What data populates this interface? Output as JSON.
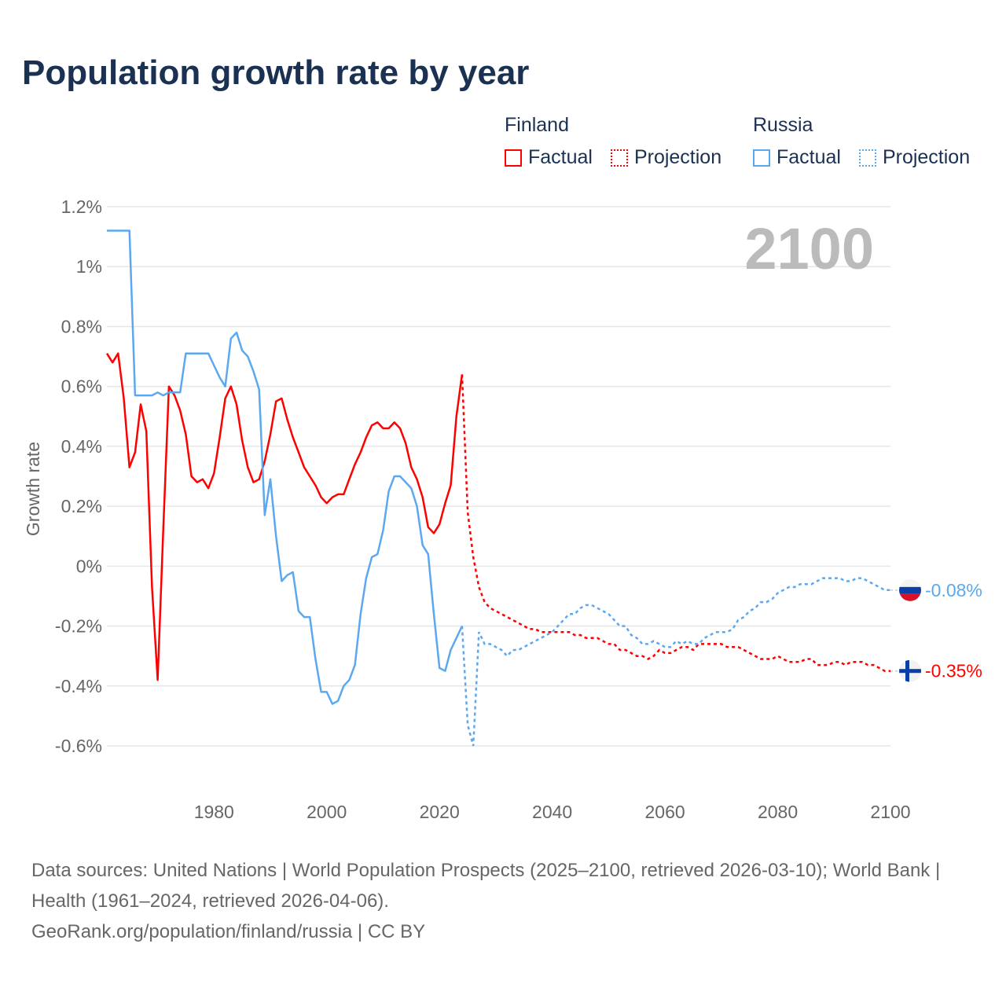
{
  "title": "Population growth rate by year",
  "legend": {
    "groups": [
      {
        "name": "Finland",
        "color": "#ff0000",
        "items": [
          "Factual",
          "Projection"
        ]
      },
      {
        "name": "Russia",
        "color": "#5ba8f0",
        "items": [
          "Factual",
          "Projection"
        ]
      }
    ]
  },
  "footer": {
    "sources": "Data sources: United Nations | World Population Prospects (2025–2100, retrieved 2026-03-10); World Bank | Health (1961–2024, retrieved 2026-04-06).",
    "credit": "GeoRank.org/population/finland/russia | CC BY"
  },
  "chart_data": {
    "type": "line",
    "title": "Population growth rate by year",
    "ylabel": "Growth rate",
    "xlabel": "",
    "year_label": "2100",
    "xlim": [
      1961,
      2100
    ],
    "ylim": [
      -0.6,
      1.2
    ],
    "x_ticks": [
      "1980",
      "2000",
      "2020",
      "2040",
      "2060",
      "2080",
      "2100"
    ],
    "y_ticks": [
      {
        "v": 1.2,
        "label": "1.2%"
      },
      {
        "v": 1.0,
        "label": "1%"
      },
      {
        "v": 0.8,
        "label": "0.8%"
      },
      {
        "v": 0.6,
        "label": "0.6%"
      },
      {
        "v": 0.4,
        "label": "0.4%"
      },
      {
        "v": 0.2,
        "label": "0.2%"
      },
      {
        "v": 0,
        "label": "0%"
      },
      {
        "v": -0.2,
        "label": "-0.2%"
      },
      {
        "v": -0.4,
        "label": "-0.4%"
      },
      {
        "v": -0.6,
        "label": "-0.6%"
      }
    ],
    "grid": true,
    "series": [
      {
        "name": "Finland",
        "color": "#ff0000",
        "end_label": "-0.35%",
        "factual_start": 1961,
        "factual": [
          0.71,
          0.68,
          0.71,
          0.56,
          0.33,
          0.38,
          0.54,
          0.45,
          -0.07,
          -0.38,
          0.12,
          0.6,
          0.57,
          0.52,
          0.44,
          0.3,
          0.28,
          0.29,
          0.26,
          0.31,
          0.43,
          0.56,
          0.6,
          0.54,
          0.42,
          0.33,
          0.28,
          0.29,
          0.35,
          0.44,
          0.55,
          0.56,
          0.49,
          0.43,
          0.38,
          0.33,
          0.3,
          0.27,
          0.23,
          0.21,
          0.23,
          0.24,
          0.24,
          0.29,
          0.34,
          0.38,
          0.43,
          0.47,
          0.48,
          0.46,
          0.46,
          0.48,
          0.46,
          0.41,
          0.33,
          0.29,
          0.23,
          0.13,
          0.11,
          0.14,
          0.21,
          0.27,
          0.5,
          0.64
        ],
        "projection_start": 2024,
        "projection": [
          0.64,
          0.18,
          0.03,
          -0.07,
          -0.12,
          -0.14,
          -0.15,
          -0.16,
          -0.17,
          -0.18,
          -0.19,
          -0.2,
          -0.21,
          -0.21,
          -0.22,
          -0.22,
          -0.22,
          -0.22,
          -0.22,
          -0.22,
          -0.23,
          -0.23,
          -0.24,
          -0.24,
          -0.24,
          -0.25,
          -0.26,
          -0.26,
          -0.28,
          -0.28,
          -0.29,
          -0.3,
          -0.3,
          -0.31,
          -0.3,
          -0.28,
          -0.29,
          -0.29,
          -0.28,
          -0.27,
          -0.27,
          -0.28,
          -0.26,
          -0.26,
          -0.26,
          -0.26,
          -0.26,
          -0.27,
          -0.27,
          -0.27,
          -0.28,
          -0.29,
          -0.3,
          -0.31,
          -0.31,
          -0.31,
          -0.3,
          -0.31,
          -0.32,
          -0.32,
          -0.32,
          -0.31,
          -0.31,
          -0.33,
          -0.33,
          -0.33,
          -0.32,
          -0.32,
          -0.33,
          -0.32,
          -0.32,
          -0.32,
          -0.33,
          -0.33,
          -0.34,
          -0.35,
          -0.35
        ]
      },
      {
        "name": "Russia",
        "color": "#5ba8f0",
        "end_label": "-0.08%",
        "factual_start": 1961,
        "factual": [
          1.12,
          1.12,
          1.12,
          1.12,
          1.12,
          0.57,
          0.57,
          0.57,
          0.57,
          0.58,
          0.57,
          0.58,
          0.58,
          0.58,
          0.71,
          0.71,
          0.71,
          0.71,
          0.71,
          0.67,
          0.63,
          0.6,
          0.76,
          0.78,
          0.72,
          0.7,
          0.65,
          0.59,
          0.17,
          0.29,
          0.1,
          -0.05,
          -0.03,
          -0.02,
          -0.15,
          -0.17,
          -0.17,
          -0.31,
          -0.42,
          -0.42,
          -0.46,
          -0.45,
          -0.4,
          -0.38,
          -0.33,
          -0.16,
          -0.04,
          0.03,
          0.04,
          0.12,
          0.25,
          0.3,
          0.3,
          0.28,
          0.26,
          0.2,
          0.07,
          0.04,
          -0.16,
          -0.34,
          -0.35,
          -0.28,
          -0.24,
          -0.2
        ],
        "projection_start": 2024,
        "projection": [
          -0.2,
          -0.53,
          -0.6,
          -0.22,
          -0.26,
          -0.26,
          -0.27,
          -0.28,
          -0.3,
          -0.28,
          -0.28,
          -0.27,
          -0.26,
          -0.25,
          -0.24,
          -0.23,
          -0.22,
          -0.2,
          -0.18,
          -0.16,
          -0.16,
          -0.14,
          -0.13,
          -0.13,
          -0.14,
          -0.15,
          -0.16,
          -0.18,
          -0.2,
          -0.2,
          -0.23,
          -0.24,
          -0.26,
          -0.26,
          -0.25,
          -0.26,
          -0.27,
          -0.27,
          -0.25,
          -0.26,
          -0.25,
          -0.26,
          -0.26,
          -0.24,
          -0.23,
          -0.22,
          -0.22,
          -0.22,
          -0.21,
          -0.18,
          -0.17,
          -0.15,
          -0.14,
          -0.12,
          -0.12,
          -0.11,
          -0.09,
          -0.08,
          -0.07,
          -0.07,
          -0.06,
          -0.06,
          -0.06,
          -0.05,
          -0.04,
          -0.04,
          -0.04,
          -0.04,
          -0.05,
          -0.05,
          -0.04,
          -0.04,
          -0.05,
          -0.06,
          -0.07,
          -0.08,
          -0.08
        ]
      }
    ]
  }
}
